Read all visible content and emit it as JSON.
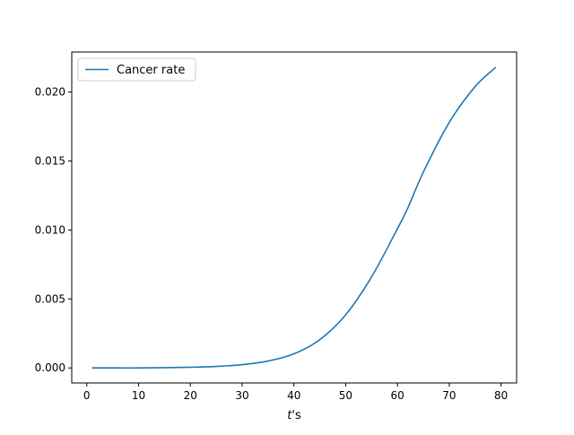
{
  "chart_data": {
    "type": "line",
    "title": "",
    "xlabel_italic": "t",
    "xlabel_rest": "'s",
    "ylabel": "",
    "xlim": [
      -2.9,
      83
    ],
    "ylim": [
      -0.00109,
      0.0229
    ],
    "xticks": [
      0,
      10,
      20,
      30,
      40,
      50,
      60,
      70,
      80
    ],
    "yticks": [
      0.0,
      0.005,
      0.01,
      0.015,
      0.02
    ],
    "ytick_labels": [
      "0.000",
      "0.005",
      "0.010",
      "0.015",
      "0.020"
    ],
    "grid": false,
    "legend_position": "top-left",
    "series": [
      {
        "name": "Cancer rate",
        "color": "#1f77b4",
        "x": [
          1,
          5,
          10,
          15,
          20,
          25,
          30,
          35,
          40,
          45,
          50,
          55,
          60,
          62,
          65,
          70,
          75,
          79
        ],
        "y": [
          0.0,
          0.0,
          0.0,
          2e-05,
          5e-05,
          0.00011,
          0.00024,
          0.0005,
          0.00102,
          0.00205,
          0.00385,
          0.0066,
          0.0101,
          0.0116,
          0.0142,
          0.0178,
          0.0204,
          0.0218
        ]
      }
    ]
  }
}
